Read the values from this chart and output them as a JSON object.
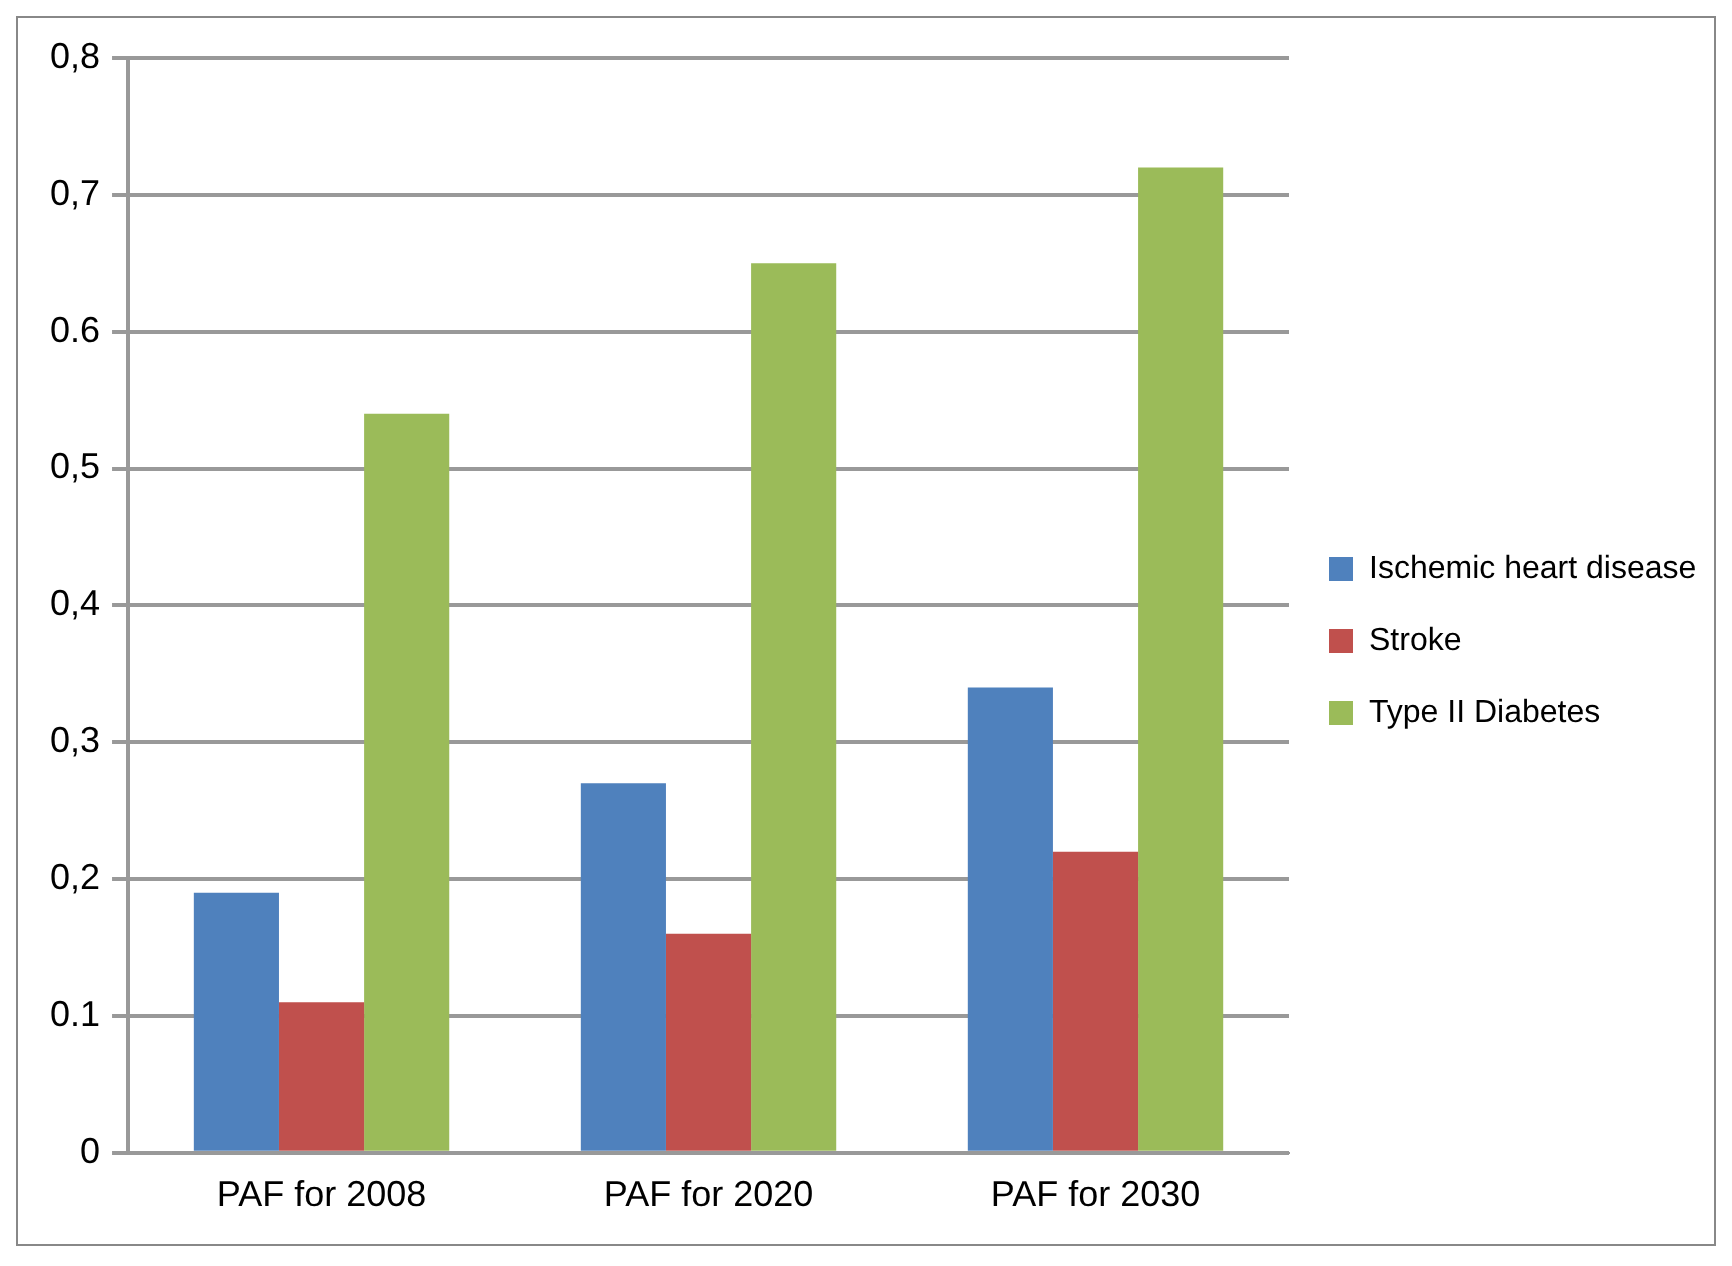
{
  "chart_data": {
    "type": "bar",
    "categories": [
      "PAF for 2008",
      "PAF for 2020",
      "PAF for 2030"
    ],
    "series": [
      {
        "name": "Ischemic heart disease",
        "color": "#4f81bd",
        "values": [
          0.19,
          0.27,
          0.34
        ]
      },
      {
        "name": "Stroke",
        "color": "#c0504d",
        "values": [
          0.11,
          0.16,
          0.22
        ]
      },
      {
        "name": "Type II Diabetes",
        "color": "#9bbb59",
        "values": [
          0.54,
          0.65,
          0.72
        ]
      }
    ],
    "ylim": [
      0,
      0.8
    ],
    "yticks": [
      0,
      {
        "value": 0.1,
        "label": "0.1"
      },
      {
        "value": 0.2,
        "label": "0,2"
      },
      {
        "value": 0.3,
        "label": "0,3"
      },
      {
        "value": 0.4,
        "label": "0,4"
      },
      {
        "value": 0.5,
        "label": "0,5"
      },
      {
        "value": 0.6,
        "label": "0.6"
      },
      {
        "value": 0.7,
        "label": "0,7"
      },
      {
        "value": 0.8,
        "label": "0,8"
      }
    ],
    "grid": "y",
    "legend": "right"
  }
}
